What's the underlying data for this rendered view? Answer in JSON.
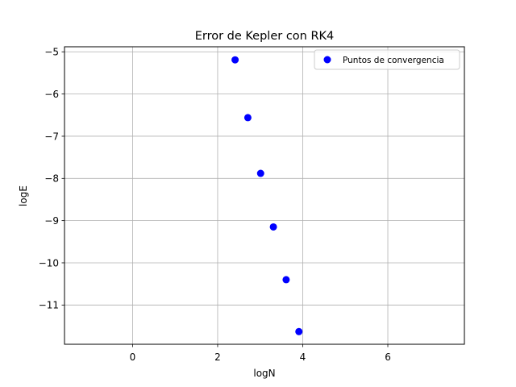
{
  "chart_data": {
    "type": "scatter",
    "title": "Error de Kepler con RK4",
    "xlabel": "logN",
    "ylabel": "logE",
    "xlim": [
      -1.6,
      7.8
    ],
    "ylim": [
      -11.93,
      -4.88
    ],
    "xticks": [
      0,
      2,
      4,
      6
    ],
    "yticks": [
      -5,
      -6,
      -7,
      -8,
      -9,
      -10,
      -11
    ],
    "xtick_labels": [
      "0",
      "2",
      "4",
      "6"
    ],
    "ytick_labels": [
      "−5",
      "−6",
      "−7",
      "−8",
      "−9",
      "−10",
      "−11"
    ],
    "grid": true,
    "legend_position": "top-right",
    "series": [
      {
        "name": "Puntos de convergencia",
        "color": "#0000ff",
        "points": [
          {
            "x": 2.41,
            "y": -5.19
          },
          {
            "x": 2.71,
            "y": -6.56
          },
          {
            "x": 3.01,
            "y": -7.88
          },
          {
            "x": 3.31,
            "y": -9.15
          },
          {
            "x": 3.61,
            "y": -10.4
          },
          {
            "x": 3.91,
            "y": -11.63
          }
        ]
      }
    ]
  }
}
